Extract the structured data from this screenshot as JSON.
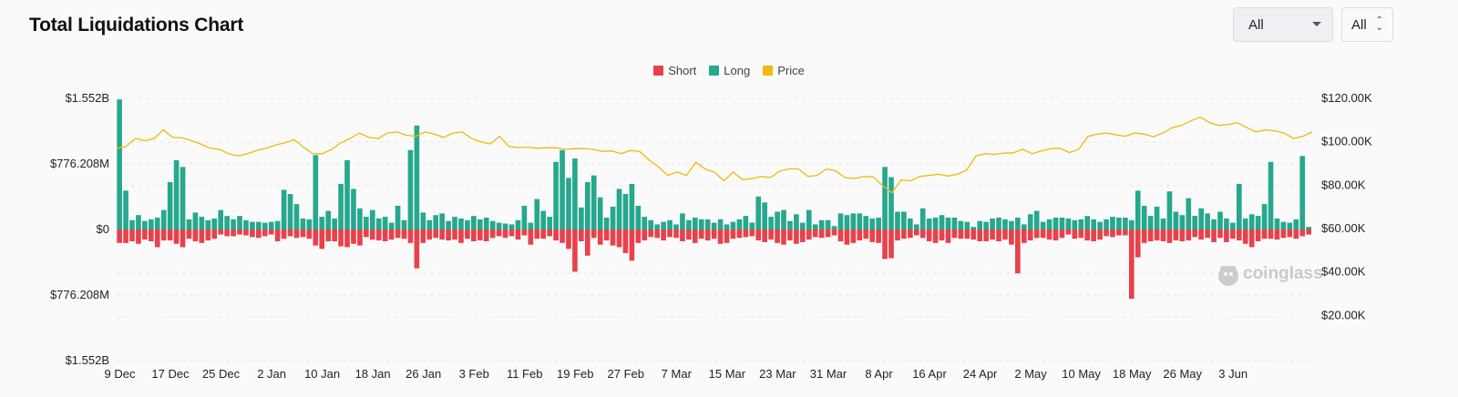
{
  "page": {
    "title": "Total Liquidations Chart"
  },
  "controls": {
    "range_select": {
      "value": "All"
    },
    "coin_select": {
      "value": "All"
    }
  },
  "watermark": {
    "text": "coinglass"
  },
  "colors": {
    "short": "#e8414b",
    "long": "#26a88e",
    "price": "#f0b90b",
    "grid": "#e6e6e6"
  },
  "chart_data": {
    "type": "bar",
    "title": "Total Liquidations Chart",
    "legend": [
      "Short",
      "Long",
      "Price"
    ],
    "legend_position": "top-center",
    "grid": true,
    "y_left_ticks": [
      "$1.552B",
      "$776.208M",
      "$0",
      "$776.208M",
      "$1.552B"
    ],
    "y_left_range_usd_millions": [
      -1552.4,
      1552.4
    ],
    "y_right_ticks": [
      "$120.00K",
      "$100.00K",
      "$80.00K",
      "$60.00K",
      "$40.00K",
      "$20.00K"
    ],
    "y_right_range_usd": [
      0,
      120000
    ],
    "x_tick_labels": [
      "9 Dec",
      "17 Dec",
      "25 Dec",
      "2 Jan",
      "10 Jan",
      "18 Jan",
      "26 Jan",
      "3 Feb",
      "11 Feb",
      "19 Feb",
      "27 Feb",
      "7 Mar",
      "15 Mar",
      "23 Mar",
      "31 Mar",
      "8 Apr",
      "16 Apr",
      "24 Apr",
      "2 May",
      "10 May",
      "18 May",
      "26 May",
      "3 Jun"
    ],
    "x_range": [
      "9 Dec",
      "6 Jun"
    ],
    "units": {
      "long_short": "USD millions",
      "price": "USD"
    },
    "series": [
      {
        "name": "Long",
        "values": [
          1540,
          460,
          110,
          170,
          100,
          120,
          140,
          230,
          560,
          820,
          740,
          120,
          200,
          150,
          110,
          130,
          230,
          160,
          120,
          160,
          110,
          90,
          90,
          80,
          90,
          100,
          470,
          420,
          300,
          130,
          120,
          880,
          150,
          220,
          130,
          540,
          820,
          480,
          250,
          150,
          230,
          130,
          150,
          80,
          280,
          110,
          940,
          1230,
          200,
          110,
          170,
          190,
          100,
          150,
          130,
          110,
          160,
          120,
          140,
          100,
          80,
          70,
          60,
          110,
          280,
          80,
          360,
          220,
          150,
          800,
          940,
          610,
          840,
          260,
          560,
          640,
          380,
          140,
          270,
          480,
          420,
          540,
          280,
          150,
          110,
          60,
          90,
          110,
          60,
          190,
          110,
          140,
          120,
          120,
          80,
          120,
          60,
          90,
          120,
          160,
          80,
          390,
          320,
          150,
          210,
          230,
          100,
          180,
          80,
          230,
          60,
          110,
          110,
          40,
          190,
          170,
          190,
          190,
          160,
          130,
          140,
          740,
          620,
          210,
          210,
          130,
          60,
          250,
          130,
          140,
          170,
          140,
          140,
          100,
          90,
          30,
          100,
          90,
          130,
          140,
          120,
          100,
          140,
          60,
          180,
          220,
          90,
          120,
          140,
          140,
          130,
          110,
          120,
          160,
          120,
          90,
          120,
          150,
          140,
          140,
          110,
          460,
          280,
          160,
          270,
          130,
          450,
          210,
          170,
          370,
          160,
          250,
          190,
          120,
          210,
          130,
          80,
          540,
          130,
          180,
          160,
          300,
          800,
          130,
          90,
          80,
          120,
          870,
          30
        ]
      },
      {
        "name": "Short",
        "values": [
          -160,
          -160,
          -140,
          -170,
          -120,
          -140,
          -210,
          -130,
          -130,
          -170,
          -210,
          -110,
          -140,
          -160,
          -130,
          -110,
          -60,
          -80,
          -80,
          -60,
          -70,
          -90,
          -100,
          -80,
          -60,
          -140,
          -110,
          -80,
          -100,
          -90,
          -110,
          -190,
          -230,
          -140,
          -140,
          -200,
          -210,
          -170,
          -190,
          -90,
          -120,
          -130,
          -140,
          -120,
          -100,
          -110,
          -160,
          -460,
          -160,
          -120,
          -100,
          -120,
          -130,
          -120,
          -160,
          -110,
          -140,
          -130,
          -140,
          -100,
          -80,
          -100,
          -80,
          -120,
          -70,
          -180,
          -110,
          -110,
          -80,
          -130,
          -160,
          -230,
          -500,
          -140,
          -310,
          -100,
          -180,
          -130,
          -190,
          -210,
          -280,
          -370,
          -160,
          -130,
          -90,
          -100,
          -130,
          -90,
          -100,
          -140,
          -120,
          -160,
          -110,
          -130,
          -110,
          -170,
          -160,
          -110,
          -100,
          -90,
          -80,
          -130,
          -150,
          -120,
          -160,
          -180,
          -130,
          -170,
          -150,
          -120,
          -90,
          -100,
          -90,
          -70,
          -140,
          -180,
          -160,
          -130,
          -110,
          -150,
          -160,
          -350,
          -340,
          -130,
          -110,
          -100,
          -70,
          -100,
          -140,
          -160,
          -130,
          -160,
          -100,
          -110,
          -110,
          -120,
          -140,
          -140,
          -120,
          -140,
          -120,
          -180,
          -520,
          -160,
          -130,
          -100,
          -100,
          -120,
          -130,
          -100,
          -60,
          -110,
          -100,
          -130,
          -140,
          -120,
          -80,
          -90,
          -70,
          -70,
          -820,
          -330,
          -160,
          -140,
          -130,
          -140,
          -160,
          -130,
          -140,
          -130,
          -90,
          -120,
          -100,
          -150,
          -100,
          -150,
          -110,
          -130,
          -170,
          -210,
          -140,
          -110,
          -110,
          -120,
          -100,
          -90,
          -110,
          -80,
          -60
        ]
      },
      {
        "name": "Price",
        "values": [
          97000,
          97800,
          101500,
          100500,
          101500,
          105500,
          102000,
          101800,
          100500,
          99000,
          97000,
          96500,
          94500,
          93500,
          94500,
          96000,
          97000,
          98500,
          99500,
          101000,
          97500,
          94500,
          94500,
          96500,
          99500,
          101500,
          104000,
          102000,
          101500,
          104000,
          104500,
          103000,
          102500,
          104500,
          103500,
          102000,
          104000,
          104500,
          101500,
          100000,
          99000,
          102500,
          97800,
          97300,
          97500,
          97000,
          97200,
          97200,
          96500,
          96800,
          96900,
          96500,
          95600,
          95800,
          94500,
          96000,
          95500,
          91500,
          88500,
          84500,
          86000,
          84500,
          90500,
          87500,
          86000,
          82000,
          86000,
          82500,
          83000,
          84000,
          83500,
          86500,
          87500,
          87500,
          84000,
          84500,
          87500,
          86500,
          83500,
          83000,
          84000,
          83800,
          79800,
          76500,
          82500,
          82000,
          84000,
          84500,
          85000,
          84200,
          85000,
          87000,
          93500,
          94500,
          94200,
          94800,
          94900,
          96500,
          94500,
          95800,
          96800,
          97000,
          95000,
          96500,
          102500,
          103500,
          104000,
          103200,
          102500,
          104000,
          103500,
          102300,
          104000,
          106500,
          107500,
          109600,
          111300,
          108800,
          107500,
          108000,
          108700,
          106500,
          104500,
          105500,
          105000,
          104000,
          101500,
          102500,
          104500
        ]
      }
    ]
  }
}
